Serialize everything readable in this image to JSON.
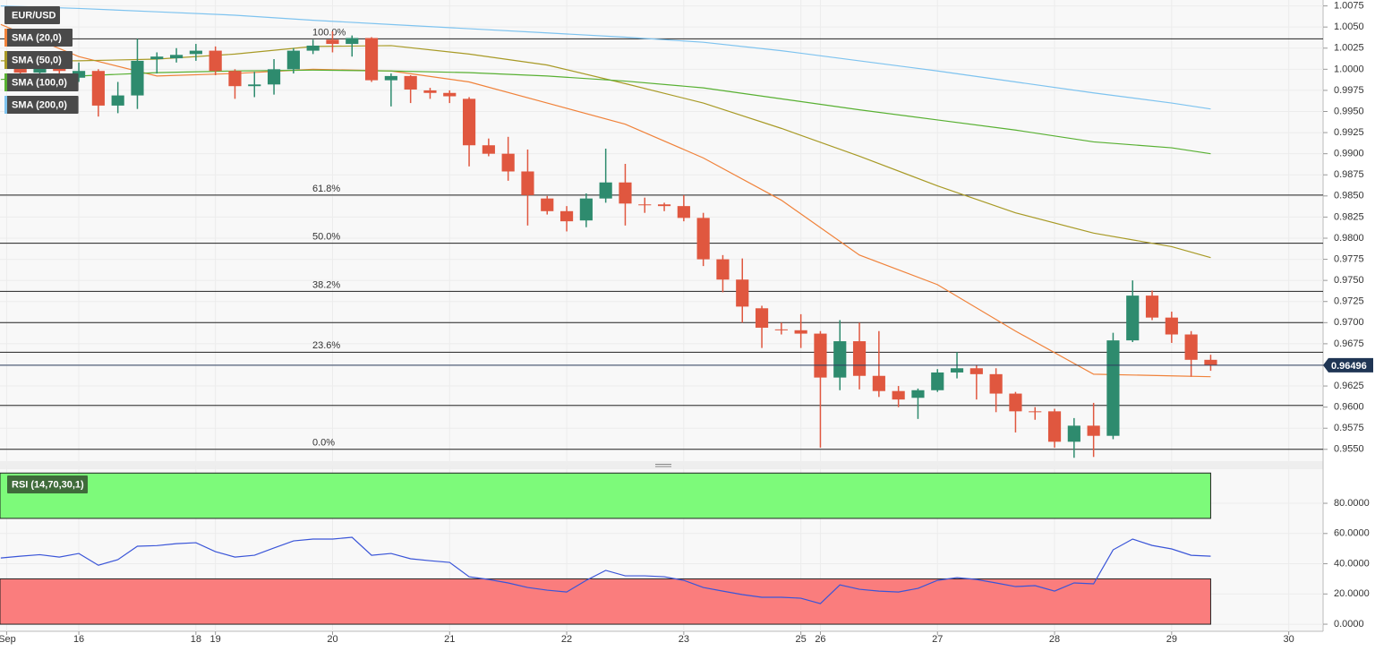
{
  "chart_data": [
    {
      "type": "candlestick",
      "title": "EUR/USD",
      "xlim": [
        -4.04,
        63.76
      ],
      "ylim": [
        0.9536,
        1.0082
      ],
      "up_color": "#2e8b6e",
      "down_color": "#e0573f",
      "x": [
        -3,
        -2,
        -1,
        0,
        1,
        2,
        3,
        4,
        5,
        6,
        7,
        8,
        9,
        10,
        11,
        12,
        13,
        14,
        15,
        16,
        17,
        18,
        19,
        20,
        21,
        22,
        23,
        24,
        25,
        26,
        27,
        28,
        29,
        30,
        31,
        32,
        33,
        34,
        35,
        36,
        37,
        38,
        39,
        40,
        41,
        42,
        43,
        44,
        45,
        46,
        47,
        48,
        49,
        50,
        51,
        52,
        53,
        54,
        55,
        56,
        57,
        58
      ],
      "open": [
        1.0005,
        0.9996,
        1.0002,
        0.999,
        0.9998,
        0.9957,
        0.9969,
        1.0012,
        1.0013,
        1.0018,
        1.0022,
        0.9998,
        0.998,
        0.9982,
        1.0,
        1.0022,
        1.0035,
        1.003,
        1.0037,
        0.9987,
        0.9992,
        0.9975,
        0.9972,
        0.9965,
        0.991,
        0.99,
        0.9879,
        0.9847,
        0.9832,
        0.9821,
        0.9847,
        0.9866,
        0.984,
        0.984,
        0.9838,
        0.9824,
        0.9775,
        0.9751,
        0.9717,
        0.9692,
        0.9691,
        0.9687,
        0.9635,
        0.9678,
        0.9637,
        0.9619,
        0.9611,
        0.962,
        0.9641,
        0.9646,
        0.9639,
        0.9616,
        0.9595,
        0.9595,
        0.9559,
        0.9578,
        0.9566,
        0.9679,
        0.9732,
        0.9706,
        0.9686,
        0.9656
      ],
      "high": [
        1.0012,
        1.0008,
        1.001,
        1.0008,
        1.0,
        0.9985,
        1.0036,
        1.002,
        1.0025,
        1.003,
        1.0027,
        1.0,
        0.9997,
        1.0012,
        1.0025,
        1.0035,
        1.0045,
        1.004,
        1.0038,
        0.9995,
        0.9993,
        0.9978,
        0.9975,
        0.9967,
        0.9918,
        0.992,
        0.9905,
        0.985,
        0.9838,
        0.9853,
        0.9906,
        0.9888,
        0.9848,
        0.9842,
        0.9851,
        0.983,
        0.978,
        0.9776,
        0.972,
        0.97,
        0.971,
        0.969,
        0.9703,
        0.97,
        0.969,
        0.9625,
        0.9622,
        0.9645,
        0.9665,
        0.965,
        0.9646,
        0.9618,
        0.96,
        0.9598,
        0.9587,
        0.9605,
        0.9688,
        0.975,
        0.9738,
        0.9713,
        0.969,
        0.9662
      ],
      "low": [
        0.999,
        0.999,
        0.9995,
        0.9985,
        0.9944,
        0.9948,
        0.9953,
        0.9995,
        1.0008,
        1.001,
        0.9993,
        0.9965,
        0.9967,
        0.997,
        0.9995,
        1.0018,
        1.002,
        1.0015,
        0.9985,
        0.9956,
        0.996,
        0.9965,
        0.996,
        0.9885,
        0.9897,
        0.9868,
        0.9815,
        0.9828,
        0.9808,
        0.9813,
        0.9842,
        0.9815,
        0.983,
        0.9832,
        0.982,
        0.9767,
        0.9736,
        0.97,
        0.967,
        0.9686,
        0.967,
        0.9552,
        0.962,
        0.9621,
        0.9612,
        0.96,
        0.9586,
        0.9618,
        0.9634,
        0.9609,
        0.9594,
        0.957,
        0.9585,
        0.9552,
        0.954,
        0.9541,
        0.9562,
        0.9677,
        0.9703,
        0.9676,
        0.9636,
        0.9643
      ],
      "close": [
        0.9996,
        1.0002,
        0.9998,
        0.9998,
        0.9957,
        0.9969,
        1.001,
        1.0015,
        1.0017,
        1.0022,
        0.9998,
        0.998,
        0.9982,
        1.0,
        1.0022,
        1.0028,
        1.003,
        1.0037,
        0.9987,
        0.9992,
        0.9976,
        0.9972,
        0.9968,
        0.991,
        0.99,
        0.9879,
        0.9851,
        0.9832,
        0.982,
        0.9847,
        0.9866,
        0.9841,
        0.9839,
        0.9838,
        0.9824,
        0.9775,
        0.9751,
        0.9719,
        0.9694,
        0.9691,
        0.9687,
        0.9635,
        0.9678,
        0.9637,
        0.9619,
        0.9609,
        0.962,
        0.9641,
        0.9646,
        0.9639,
        0.9616,
        0.9595,
        0.9594,
        0.9559,
        0.9578,
        0.9566,
        0.9679,
        0.9732,
        0.9706,
        0.9686,
        0.9656,
        0.965
      ],
      "series": [
        {
          "name": "SMA (20,0)",
          "color": "#f0823a",
          "x": [
            -4,
            0,
            4,
            8,
            12,
            16,
            20,
            24,
            28,
            32,
            36,
            40,
            44,
            48,
            52,
            56,
            58
          ],
          "values": [
            1.0053,
            1.0015,
            0.9992,
            0.9995,
            1.0,
            0.9998,
            0.9985,
            0.996,
            0.9935,
            0.9895,
            0.9845,
            0.978,
            0.9745,
            0.969,
            0.9639,
            0.9637,
            0.9636
          ]
        },
        {
          "name": "SMA (50,0)",
          "color": "#a89a26",
          "x": [
            -4,
            0,
            4,
            8,
            12,
            16,
            20,
            24,
            28,
            32,
            36,
            40,
            44,
            48,
            52,
            56,
            58
          ],
          "values": [
            1.001,
            1.001,
            1.0012,
            1.0018,
            1.0027,
            1.0028,
            1.0018,
            1.0005,
            0.9983,
            0.996,
            0.993,
            0.9897,
            0.9862,
            0.983,
            0.9806,
            0.979,
            0.9777
          ]
        },
        {
          "name": "SMA (100,0)",
          "color": "#58b032",
          "x": [
            -4,
            0,
            4,
            8,
            12,
            16,
            20,
            24,
            28,
            32,
            36,
            40,
            44,
            48,
            52,
            56,
            58
          ],
          "values": [
            0.9988,
            0.9992,
            0.9996,
            0.9998,
            0.9999,
            0.9998,
            0.9996,
            0.9992,
            0.9986,
            0.9978,
            0.9965,
            0.9952,
            0.994,
            0.9928,
            0.9914,
            0.9907,
            0.99
          ]
        },
        {
          "name": "SMA (200,0)",
          "color": "#7ec3ef",
          "x": [
            -4,
            0,
            4,
            8,
            12,
            16,
            20,
            24,
            28,
            32,
            36,
            40,
            44,
            48,
            52,
            56,
            58
          ],
          "values": [
            1.0075,
            1.0072,
            1.0068,
            1.0064,
            1.0058,
            1.0053,
            1.0048,
            1.0043,
            1.0038,
            1.0032,
            1.0022,
            1.001,
            0.9998,
            0.9985,
            0.9972,
            0.996,
            0.9953
          ]
        }
      ],
      "levels": [
        {
          "value": 1.0036,
          "label": "100.0%"
        },
        {
          "value": 0.9851,
          "label": "61.8%"
        },
        {
          "value": 0.9794,
          "label": "50.0%"
        },
        {
          "value": 0.9737,
          "label": "38.2%"
        },
        {
          "value": 0.97
        },
        {
          "value": 0.9665,
          "label": "23.6%"
        },
        {
          "value": 0.9602
        },
        {
          "value": 0.955,
          "label": "0.0%"
        }
      ],
      "last_price": {
        "value": 0.96496,
        "label": "0.96496"
      },
      "yticks": [
        1.0075,
        {
          "value": 1.005,
          "label": "1.0050"
        },
        1.0025,
        {
          "value": 1.0,
          "label": "1.0000"
        },
        0.9975,
        {
          "value": 0.995,
          "label": "0.9950"
        },
        0.9925,
        {
          "value": 0.99,
          "label": "0.9900"
        },
        0.9875,
        {
          "value": 0.985,
          "label": "0.9850"
        },
        0.9825,
        {
          "value": 0.98,
          "label": "0.9800"
        },
        0.9775,
        {
          "value": 0.975,
          "label": "0.9750"
        },
        0.9725,
        {
          "value": 0.97,
          "label": "0.9700"
        },
        0.9675,
        {
          "value": 0.965,
          "label": "0.9650"
        },
        0.9625,
        {
          "value": 0.96,
          "label": "0.9600"
        },
        0.9575,
        {
          "value": 0.955,
          "label": "0.9550"
        }
      ]
    },
    {
      "type": "line",
      "title": "RSI (14,70,30,1)",
      "xlim": [
        -4.04,
        63.76
      ],
      "ylim": [
        -4.7,
        104.9
      ],
      "zones": [
        {
          "from": 70,
          "to": 100,
          "color": "#7dfa7a"
        },
        {
          "from": 0,
          "to": 30,
          "color": "#fa7d7d"
        }
      ],
      "series": [
        {
          "color": "#3a55d8",
          "x": [
            -4,
            -3,
            -2,
            -1,
            0,
            1,
            2,
            3,
            4,
            5,
            6,
            7,
            8,
            9,
            10,
            11,
            12,
            13,
            14,
            15,
            16,
            17,
            18,
            19,
            20,
            21,
            22,
            23,
            24,
            25,
            26,
            27,
            28,
            29,
            30,
            31,
            32,
            33,
            34,
            35,
            36,
            37,
            38,
            39,
            40,
            41,
            42,
            43,
            44,
            45,
            46,
            47,
            48,
            49,
            50,
            51,
            52,
            53,
            54,
            55,
            56,
            57,
            58
          ],
          "values": [
            43.8,
            45,
            46,
            44.4,
            46.8,
            39,
            42.7,
            51.6,
            52,
            53.3,
            53.9,
            48,
            44.4,
            45.6,
            50.4,
            55.1,
            56.3,
            56.3,
            57.5,
            45.6,
            46.8,
            43.3,
            42,
            40.9,
            31.4,
            29.6,
            27.3,
            24.3,
            22.5,
            21.3,
            29,
            35.6,
            32,
            32,
            31.4,
            29,
            24.3,
            21.9,
            19.6,
            17.8,
            17.8,
            17.2,
            13.6,
            26,
            23.1,
            21.9,
            21.3,
            23.7,
            29,
            30.8,
            29.6,
            27.3,
            24.9,
            25.5,
            21.9,
            27.3,
            26.7,
            49.2,
            56.3,
            52.1,
            49.8,
            45.6,
            45
          ]
        }
      ],
      "yticks": [
        {
          "value": 80,
          "label": "80.0000"
        },
        {
          "value": 60,
          "label": "60.0000"
        },
        {
          "value": 40,
          "label": "40.0000"
        },
        {
          "value": 20,
          "label": "20.0000"
        },
        {
          "value": 0,
          "label": "0.0000"
        }
      ],
      "xticks": [
        {
          "value": -3.7,
          "label": "Sep"
        },
        {
          "value": 0,
          "label": "16"
        },
        {
          "value": 6,
          "label": "18"
        },
        {
          "value": 7,
          "label": "19"
        },
        {
          "value": 13,
          "label": "20"
        },
        {
          "value": 19,
          "label": "21"
        },
        {
          "value": 25,
          "label": "22"
        },
        {
          "value": 31,
          "label": "23"
        },
        {
          "value": 37,
          "label": "25"
        },
        {
          "value": 38,
          "label": "26"
        },
        {
          "value": 44,
          "label": "27"
        },
        {
          "value": 50,
          "label": "28"
        },
        {
          "value": 56,
          "label": "29"
        },
        {
          "value": 62,
          "label": "30"
        }
      ]
    }
  ]
}
